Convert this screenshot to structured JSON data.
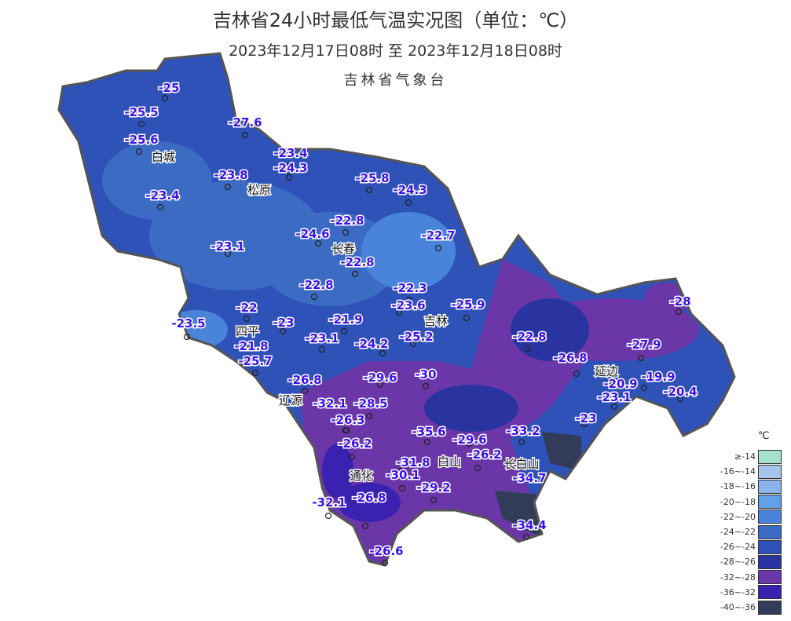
{
  "header": {
    "title": "吉林省24小时最低气温实况图（单位：℃）",
    "period": "2023年12月17日08时  至  2023年12月18日08时",
    "publisher": "吉林省气象台"
  },
  "cities": [
    "白城",
    "松原",
    "长春",
    "四平",
    "吉林",
    "辽源",
    "延边",
    "通化",
    "白山",
    "长白山"
  ],
  "stations": [
    "-25",
    "-25.5",
    "-27.6",
    "-25.6",
    "-23.8",
    "-23.4",
    "-24.3",
    "-25.8",
    "-24.3",
    "-23.4",
    "-22.8",
    "-24.6",
    "-22.7",
    "-23.1",
    "-22.8",
    "-22.8",
    "-22.3",
    "-23.6",
    "-25.9",
    "-22",
    "-23.5",
    "-23",
    "-21.9",
    "-25.2",
    "-21.8",
    "-23.1",
    "-24.2",
    "-22.8",
    "-28",
    "-27.9",
    "-26.8",
    "-25.7",
    "-29.6",
    "-30",
    "-26.8",
    "-20.9",
    "-19.9",
    "-32.1",
    "-28.5",
    "-23.1",
    "-20.4",
    "-26.3",
    "-23",
    "-33.2",
    "-35.6",
    "-26.2",
    "-29.6",
    "-26.2",
    "-31.8",
    "-34.7",
    "-30.1",
    "-29.2",
    "-32.1",
    "-26.8",
    "-34.4",
    "-26.6"
  ],
  "legend": {
    "unit": "℃",
    "items": [
      {
        "label": "≥-14",
        "color": "#a8e0d0"
      },
      {
        "label": "-16~-14",
        "color": "#a9c4ea"
      },
      {
        "label": "-18~-16",
        "color": "#8db4ea"
      },
      {
        "label": "-20~-18",
        "color": "#62a0e8"
      },
      {
        "label": "-22~-20",
        "color": "#4a84da"
      },
      {
        "label": "-24~-22",
        "color": "#3c6bc4"
      },
      {
        "label": "-26~-24",
        "color": "#2e52b8"
      },
      {
        "label": "-28~-26",
        "color": "#2a34a0"
      },
      {
        "label": "-32~-28",
        "color": "#6a36a8"
      },
      {
        "label": "-36~-32",
        "color": "#3a22b0"
      },
      {
        "label": "-40~-36",
        "color": "#323c58"
      }
    ]
  }
}
